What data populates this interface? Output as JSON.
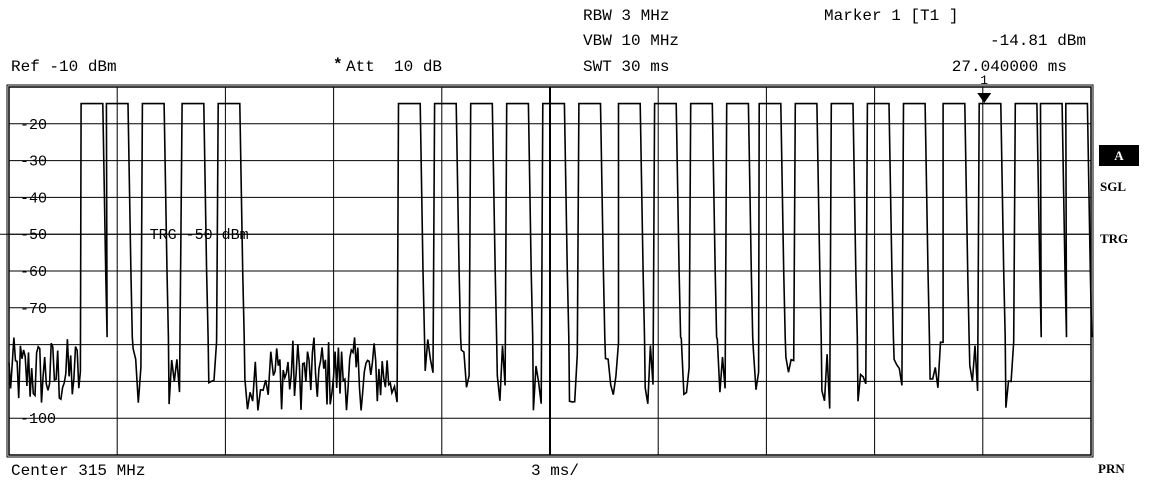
{
  "header": {
    "rbw": "RBW 3 MHz",
    "vbw": "VBW 10 MHz",
    "swt": "SWT 30 ms",
    "marker_title": "Marker 1 [T1 ]",
    "marker_level": "-14.81 dBm",
    "marker_time": "27.040000 ms",
    "ref_level": "Ref -10 dBm",
    "att_star": "*",
    "att": "Att  10 dB"
  },
  "side_labels": {
    "a_box": "A",
    "sgl": "SGL",
    "trg": "TRG",
    "prn": "PRN"
  },
  "footer": {
    "center": "Center 315 MHz",
    "span_div": "3 ms/"
  },
  "colors": {
    "trace": "#000000",
    "grid": "#000000",
    "background": "#ffffff"
  },
  "chart_data": {
    "type": "line",
    "x_unit": "ms",
    "y_unit": "dBm",
    "xlim": [
      0,
      30
    ],
    "ylim": [
      -110,
      -10
    ],
    "y_tick_labels": [
      "-20",
      "-30",
      "-40",
      "-50",
      "-60",
      "-70",
      "-100"
    ],
    "trigger_label": "TRG -50 dBm",
    "trigger_level": -50,
    "marker": {
      "label": "1",
      "x": 27.04,
      "y": -14.81
    },
    "high_level": -14.5,
    "low_level_range": [
      -98,
      -78
    ],
    "pulses": [
      [
        2.0,
        2.6
      ],
      [
        2.7,
        3.3
      ],
      [
        3.7,
        4.3
      ],
      [
        4.8,
        5.4
      ],
      [
        5.8,
        6.4
      ],
      [
        10.8,
        11.4
      ],
      [
        11.8,
        12.4
      ],
      [
        12.8,
        13.4
      ],
      [
        13.8,
        14.4
      ],
      [
        14.8,
        15.4
      ],
      [
        15.8,
        16.4
      ],
      [
        16.9,
        17.5
      ],
      [
        17.9,
        18.5
      ],
      [
        18.9,
        19.5
      ],
      [
        19.9,
        20.5
      ],
      [
        20.8,
        21.4
      ],
      [
        21.8,
        22.4
      ],
      [
        22.8,
        23.4
      ],
      [
        23.8,
        24.4
      ],
      [
        24.8,
        25.4
      ],
      [
        25.9,
        26.5
      ],
      [
        26.9,
        27.5
      ],
      [
        27.9,
        28.5
      ],
      [
        28.6,
        29.2
      ],
      [
        29.3,
        29.9
      ]
    ],
    "noisy_bursts": [
      [
        0.0,
        2.0
      ],
      [
        7.3,
        10.6
      ]
    ]
  }
}
